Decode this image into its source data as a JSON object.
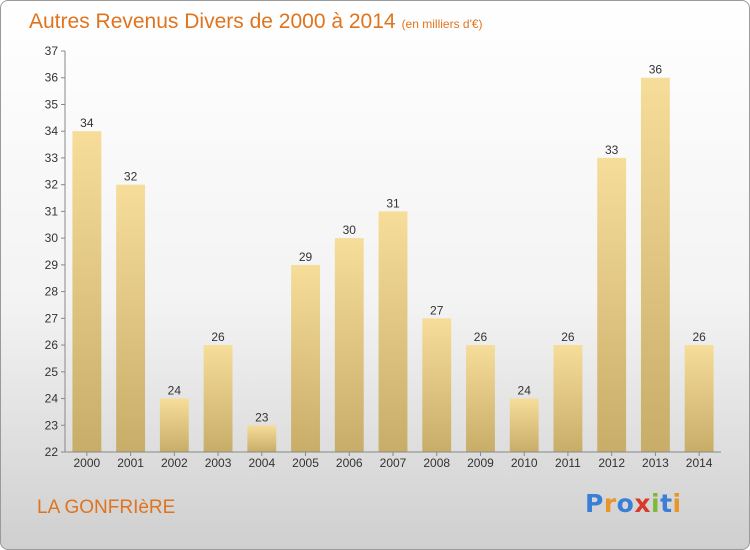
{
  "header": {
    "title": "Autres Revenus Divers de 2000 à 2014",
    "unit": "(en milliers d'€)"
  },
  "footer": {
    "place": "LA GONFRIèRE",
    "brand": "Proxiti",
    "brand_colors": [
      "#3a7fd5",
      "#e8952a",
      "#3a7fd5",
      "#d93b2b",
      "#7fb83a",
      "#3a7fd5",
      "#e8952a"
    ]
  },
  "chart_data": {
    "type": "bar",
    "categories": [
      "2000",
      "2001",
      "2002",
      "2003",
      "2004",
      "2005",
      "2006",
      "2007",
      "2008",
      "2009",
      "2010",
      "2011",
      "2012",
      "2013",
      "2014"
    ],
    "values": [
      34,
      32,
      24,
      26,
      23,
      29,
      30,
      31,
      27,
      26,
      24,
      26,
      33,
      36,
      26
    ],
    "ylim": [
      22,
      37
    ],
    "yticks": [
      22,
      23,
      24,
      25,
      26,
      27,
      28,
      29,
      30,
      31,
      32,
      33,
      34,
      35,
      36,
      37
    ],
    "grid": false,
    "data_labels": true,
    "bar_color_top": "#f7dd9a",
    "bar_color_bottom": "#c7ad68"
  }
}
